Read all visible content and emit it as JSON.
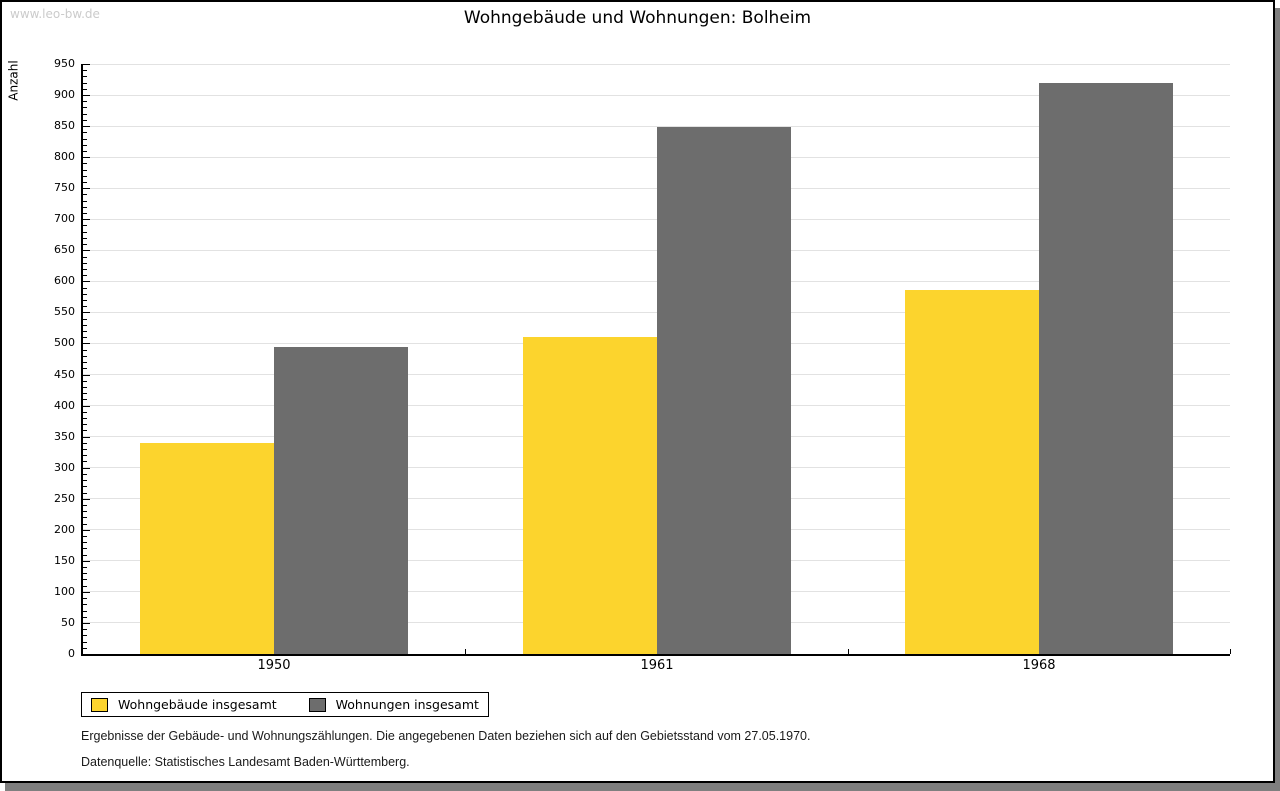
{
  "watermark": "www.leo-bw.de",
  "title": "Wohngebäude und Wohnungen: Bolheim",
  "chart_data": {
    "type": "bar",
    "title": "Wohngebäude und Wohnungen: Bolheim",
    "xlabel": "",
    "ylabel": "Anzahl",
    "categories": [
      "1950",
      "1961",
      "1968"
    ],
    "series": [
      {
        "name": "Wohngebäude insgesamt",
        "color": "#FCD42D",
        "values": [
          340,
          510,
          586
        ]
      },
      {
        "name": "Wohnungen insgesamt",
        "color": "#6D6D6D",
        "values": [
          494,
          848,
          920
        ]
      }
    ],
    "ylim": [
      0,
      950
    ],
    "ytick_step": 50,
    "yminor_step": 10,
    "grid": true,
    "gridline_color": "#E2E2E2",
    "legend_position": "bottom-left"
  },
  "footer": {
    "line1": "Ergebnisse der Gebäude- und Wohnungszählungen. Die angegebenen Daten beziehen sich auf den Gebietsstand vom 27.05.1970.",
    "line2": "Datenquelle: Statistisches Landesamt Baden-Württemberg."
  },
  "colors": {
    "frame_border": "#000000",
    "frame_shadow": "#7F7F7F",
    "watermark": "#CBCBCB",
    "axis": "#000000"
  }
}
